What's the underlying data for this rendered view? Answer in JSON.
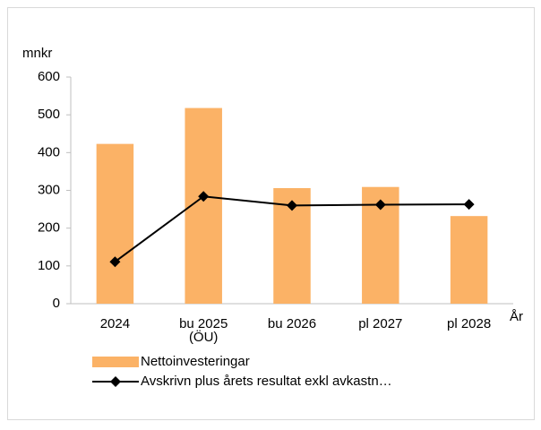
{
  "chart_data": {
    "type": "bar_line",
    "y_axis_label": "mnkr",
    "x_axis_label": "År",
    "categories": [
      "2024",
      "bu 2025 (ÖU)",
      "bu 2026",
      "pl 2027",
      "pl 2028"
    ],
    "series": [
      {
        "name": "Nettoinvesteringar",
        "type": "bar",
        "color": "#fbb266",
        "values": [
          423,
          518,
          306,
          309,
          232
        ]
      },
      {
        "name": "Avskrivn plus årets resultat exkl avkastn…",
        "type": "line",
        "color": "#000000",
        "values": [
          111,
          284,
          260,
          262,
          263
        ]
      }
    ],
    "ylim": [
      0,
      600
    ],
    "yticks": [
      0,
      100,
      200,
      300,
      400,
      500,
      600
    ],
    "grid": false
  }
}
